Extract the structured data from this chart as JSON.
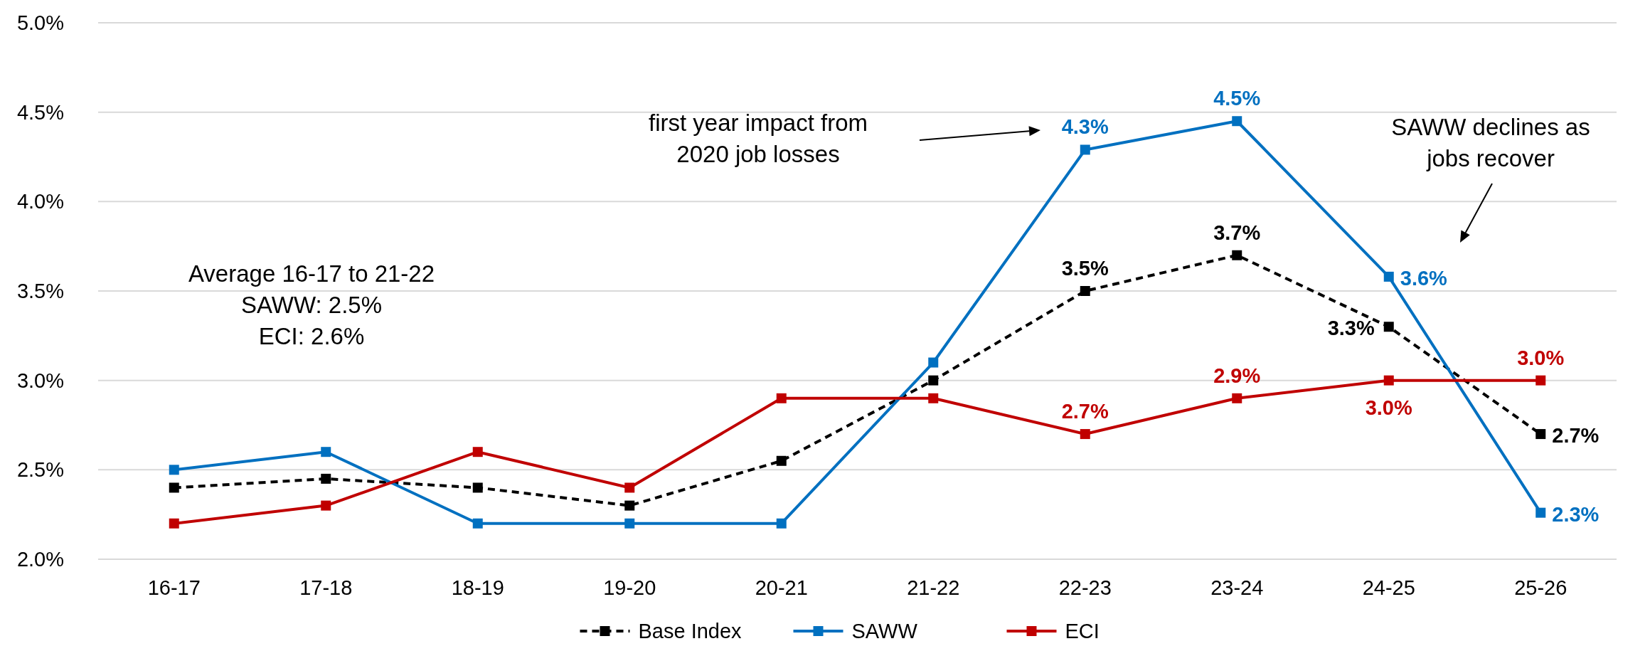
{
  "chart_data": {
    "type": "line",
    "categories": [
      "16-17",
      "17-18",
      "18-19",
      "19-20",
      "20-21",
      "21-22",
      "22-23",
      "23-24",
      "24-25",
      "25-26"
    ],
    "series": [
      {
        "name": "Base Index",
        "color": "#000000",
        "line_style": "dashed",
        "values": [
          2.4,
          2.45,
          2.4,
          2.3,
          2.55,
          3.0,
          3.5,
          3.7,
          3.3,
          2.7
        ],
        "value_labels": [
          null,
          null,
          null,
          null,
          null,
          null,
          "3.5%",
          "3.7%",
          "3.3%",
          "2.7%"
        ]
      },
      {
        "name": "SAWW",
        "color": "#0070c0",
        "line_style": "solid",
        "values": [
          2.5,
          2.6,
          2.2,
          2.2,
          2.2,
          3.1,
          4.29,
          4.45,
          3.58,
          2.26
        ],
        "value_labels": [
          null,
          null,
          null,
          null,
          null,
          null,
          "4.3%",
          "4.5%",
          "3.6%",
          "2.3%"
        ]
      },
      {
        "name": "ECI",
        "color": "#c00000",
        "line_style": "solid",
        "values": [
          2.2,
          2.3,
          2.6,
          2.4,
          2.9,
          2.9,
          2.7,
          2.9,
          3.0,
          3.0
        ],
        "value_labels": [
          null,
          null,
          null,
          null,
          null,
          null,
          "2.7%",
          "2.9%",
          "3.0%",
          "3.0%"
        ]
      }
    ],
    "ylim": [
      2.0,
      5.0
    ],
    "yticks": [
      {
        "value": 2.0,
        "label": "2.0%"
      },
      {
        "value": 2.5,
        "label": "2.5%"
      },
      {
        "value": 3.0,
        "label": "3.0%"
      },
      {
        "value": 3.5,
        "label": "3.5%"
      },
      {
        "value": 4.0,
        "label": "4.0%"
      },
      {
        "value": 4.5,
        "label": "4.5%"
      },
      {
        "value": 5.0,
        "label": "5.0%"
      }
    ],
    "grid": "y",
    "legend": "bottom",
    "marker": "square",
    "annotations": [
      "Average 16-17 to 21-22\nSAWW: 2.5%\nECI: 2.6%",
      "first year impact from\n2020 job losses",
      "SAWW declines as\njobs recover"
    ]
  }
}
